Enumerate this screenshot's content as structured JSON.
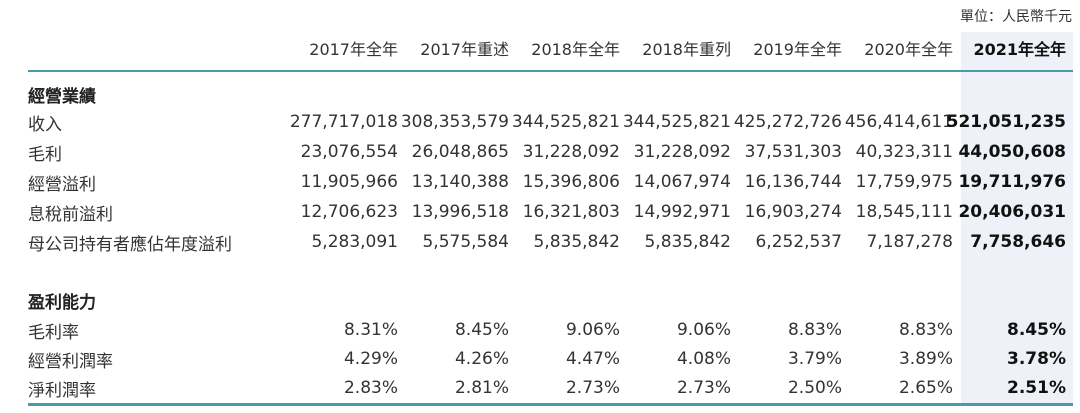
{
  "unit": "單位：人民幣千元",
  "columns": [
    "2017年全年",
    "2017年重述",
    "2018年全年",
    "2018年重列",
    "2019年全年",
    "2020年全年",
    "2021年全年"
  ],
  "sections": [
    {
      "title": "經營業績",
      "rows": [
        {
          "label": "收入",
          "values": [
            "277,717,018",
            "308,353,579",
            "344,525,821",
            "344,525,821",
            "425,272,726",
            "456,414,611",
            "521,051,235"
          ]
        },
        {
          "label": "毛利",
          "values": [
            "23,076,554",
            "26,048,865",
            "31,228,092",
            "31,228,092",
            "37,531,303",
            "40,323,311",
            "44,050,608"
          ]
        },
        {
          "label": "經營溢利",
          "values": [
            "11,905,966",
            "13,140,388",
            "15,396,806",
            "14,067,974",
            "16,136,744",
            "17,759,975",
            "19,711,976"
          ]
        },
        {
          "label": "息稅前溢利",
          "values": [
            "12,706,623",
            "13,996,518",
            "16,321,803",
            "14,992,971",
            "16,903,274",
            "18,545,111",
            "20,406,031"
          ]
        },
        {
          "label": "母公司持有者應佔年度溢利",
          "values": [
            "5,283,091",
            "5,575,584",
            "5,835,842",
            "5,835,842",
            "6,252,537",
            "7,187,278",
            "7,758,646"
          ]
        }
      ]
    },
    {
      "title": "盈利能力",
      "rows": [
        {
          "label": "毛利率",
          "values": [
            "8.31%",
            "8.45%",
            "9.06%",
            "9.06%",
            "8.83%",
            "8.83%",
            "8.45%"
          ]
        },
        {
          "label": "經營利潤率",
          "values": [
            "4.29%",
            "4.26%",
            "4.47%",
            "4.08%",
            "3.79%",
            "3.89%",
            "3.78%"
          ]
        },
        {
          "label": "淨利潤率",
          "values": [
            "2.83%",
            "2.81%",
            "2.73%",
            "2.73%",
            "2.50%",
            "2.65%",
            "2.51%"
          ]
        }
      ]
    }
  ],
  "colors": {
    "accent_line": "#4a9aab",
    "highlight_bg": "#eef2f8"
  }
}
